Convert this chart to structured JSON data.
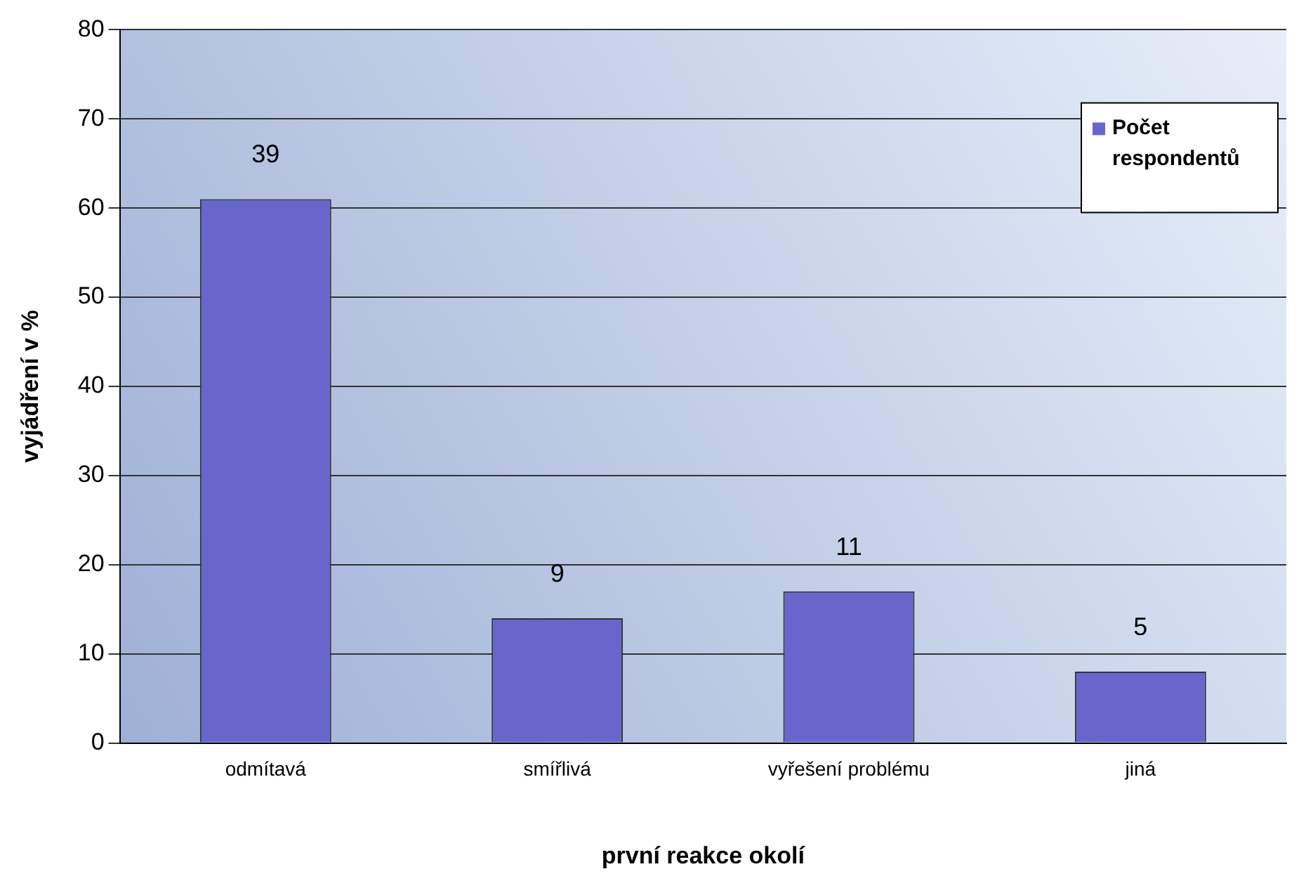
{
  "chart_data": {
    "type": "bar",
    "xlabel": "první reakce okolí",
    "ylabel": "vyjádření v %",
    "categories": [
      "odmítavá",
      "smířlivá",
      "vyřešení problému",
      "jiná"
    ],
    "series": [
      {
        "name": "Počet respondentů",
        "color": "#6666cc",
        "values": [
          61,
          14,
          17,
          8
        ]
      }
    ],
    "annotations": [
      {
        "text": "39",
        "x": "odmítavá",
        "y": 61
      },
      {
        "text": "9",
        "x": "smířlivá",
        "y": 14
      },
      {
        "text": "11",
        "x": "vyřešení problému",
        "y": 17
      },
      {
        "text": "5",
        "x": "jiná",
        "y": 8
      }
    ],
    "ylim": [
      0,
      80
    ],
    "yticks": [
      0,
      10,
      20,
      30,
      40,
      50,
      60,
      70,
      80
    ],
    "grid": "y",
    "legend": "top right"
  }
}
